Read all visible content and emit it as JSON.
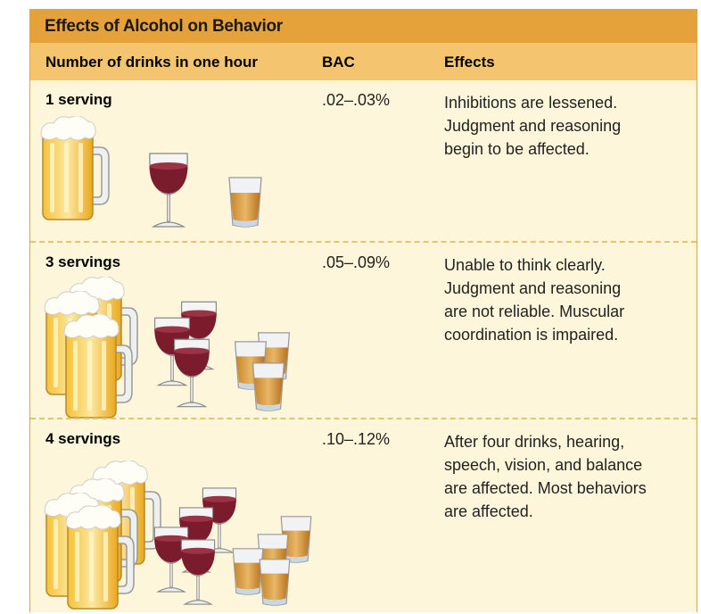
{
  "title": "Effects of Alcohol on Behavior",
  "columns": [
    "Number of drinks in one hour",
    "BAC",
    "Effects"
  ],
  "rows": [
    {
      "servings": "1 serving",
      "bac": ".02–.03%",
      "effects": [
        "Inhibitions are lessened.",
        "Judgment and reasoning",
        "begin to be affected."
      ]
    },
    {
      "servings": "3 servings",
      "bac": ".05–.09%",
      "effects": [
        "Unable to think clearly.",
        "Judgment and reasoning",
        "are not reliable.  Muscular",
        "coordination is impaired."
      ]
    },
    {
      "servings": "4 servings",
      "bac": ".10–.12%",
      "effects": [
        "After four drinks, hearing,",
        "speech, vision, and balance",
        "are affected. Most behaviors",
        "are affected."
      ]
    }
  ]
}
